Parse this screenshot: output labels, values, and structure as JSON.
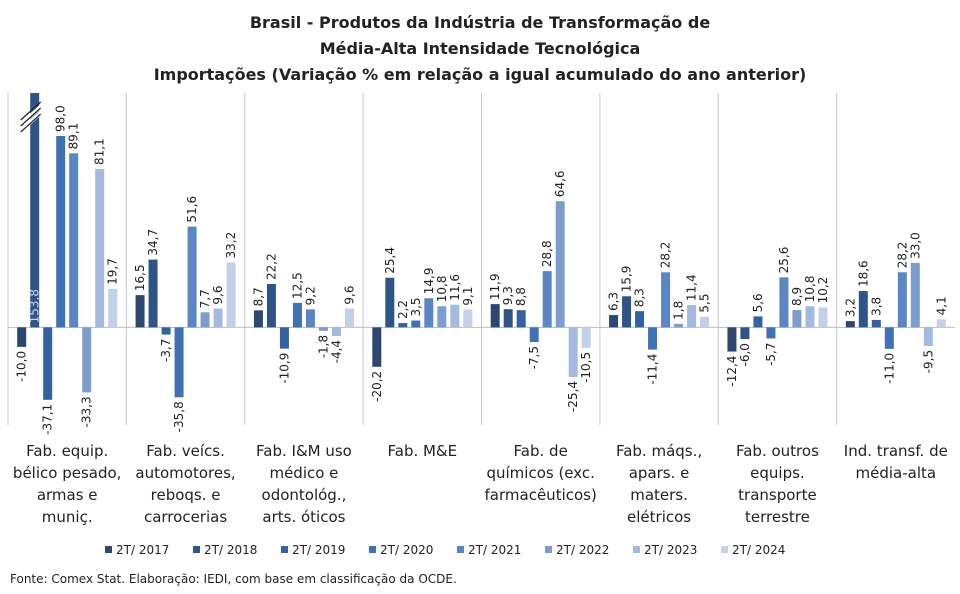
{
  "chart_data": {
    "type": "bar",
    "title": [
      "Brasil - Produtos da Indústria de Transformação de",
      "Média-Alta Intensidade Tecnológica",
      "Importações (Variação % em relação a igual acumulado do ano anterior)"
    ],
    "categories": [
      "Fab. equip. bélico pesado, armas e muniç.",
      "Fab. veícs. automotores, reboqs. e carrocerias",
      "Fab. I&M uso médico e odontológ., arts. óticos",
      "Fab. M&E",
      "Fab. de químicos (exc. farmacêuticos)",
      "Fab. máqs., apars. e maters. elétricos",
      "Fab. outros equips. transporte terrestre",
      "Ind. transf. de média-alta"
    ],
    "ylim": [
      -50,
      120
    ],
    "series": [
      {
        "name": "2T/ 2017",
        "color": "#2c4770",
        "values": [
          -10.0,
          16.5,
          8.7,
          -20.2,
          11.9,
          6.3,
          -12.4,
          3.2
        ],
        "value_labels": [
          "-10,0",
          "16,5",
          "8,7",
          "-20,2",
          "11,9",
          "6,3",
          "-12,4",
          "3,2"
        ]
      },
      {
        "name": "2T/ 2018",
        "color": "#2f5488",
        "values": [
          153.8,
          34.7,
          22.2,
          25.4,
          9.3,
          15.9,
          -6.0,
          18.6
        ],
        "value_labels": [
          "153,8",
          "34,7",
          "22,2",
          "25,4",
          "9,3",
          "15,9",
          "-6,0",
          "18,6"
        ]
      },
      {
        "name": "2T/ 2019",
        "color": "#3461a0",
        "values": [
          -37.1,
          -3.7,
          -10.9,
          2.2,
          8.8,
          8.3,
          5.6,
          3.8
        ],
        "value_labels": [
          "-37,1",
          "-3,7",
          "-10,9",
          "2,2",
          "8,8",
          "8,3",
          "5,6",
          "3,8"
        ]
      },
      {
        "name": "2T/ 2020",
        "color": "#3f71b4",
        "values": [
          98.0,
          -35.8,
          12.5,
          3.5,
          -7.5,
          -11.4,
          -5.7,
          -11.0
        ],
        "value_labels": [
          "98,0",
          "-35,8",
          "12,5",
          "3,5",
          "-7,5",
          "-11,4",
          "-5,7",
          "-11,0"
        ]
      },
      {
        "name": "2T/ 2021",
        "color": "#5a86c3",
        "values": [
          89.1,
          51.6,
          9.2,
          14.9,
          28.8,
          28.2,
          25.6,
          28.2
        ],
        "value_labels": [
          "89,1",
          "51,6",
          "9,2",
          "14,9",
          "28,8",
          "28,2",
          "25,6",
          "28,2"
        ]
      },
      {
        "name": "2T/ 2022",
        "color": "#7e9dcf",
        "values": [
          -33.3,
          7.7,
          -1.8,
          10.8,
          64.6,
          1.8,
          8.9,
          33.0
        ],
        "value_labels": [
          "-33,3",
          "7,7",
          "-1,8",
          "10,8",
          "64,6",
          "1,8",
          "8,9",
          "33,0"
        ]
      },
      {
        "name": "2T/ 2023",
        "color": "#a4b9e0",
        "values": [
          81.1,
          9.6,
          -4.4,
          11.6,
          -25.4,
          11.4,
          10.8,
          -9.5
        ],
        "value_labels": [
          "81,1",
          "9,6",
          "-4,4",
          "11,6",
          "-25,4",
          "11,4",
          "10,8",
          "-9,5"
        ]
      },
      {
        "name": "2T/ 2024",
        "color": "#c3d0ea",
        "values": [
          19.7,
          33.2,
          9.6,
          9.1,
          -10.5,
          5.5,
          10.2,
          4.1
        ],
        "value_labels": [
          "19,7",
          "33,2",
          "9,6",
          "9,1",
          "-10,5",
          "5,5",
          "10,2",
          "4,1"
        ]
      }
    ],
    "note": "Fonte: Comex Stat. Elaboração: IEDI, com base em classificação da OCDE."
  }
}
